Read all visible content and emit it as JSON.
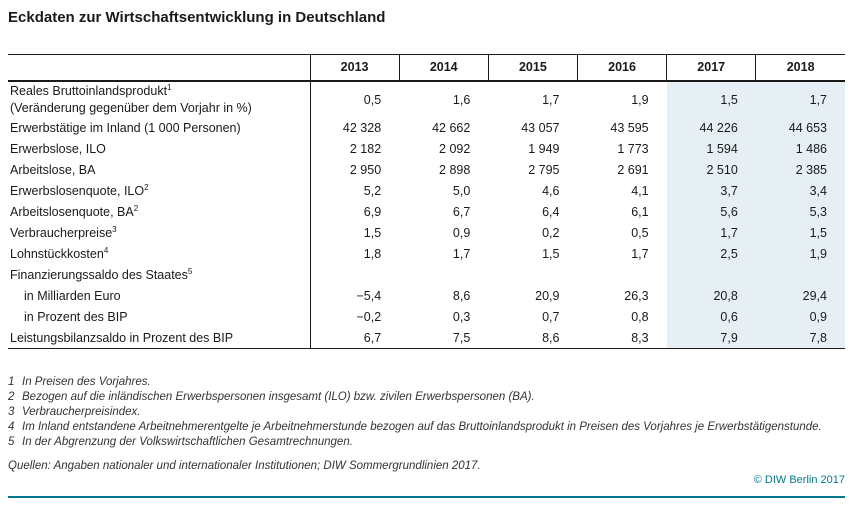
{
  "title": "Eckdaten zur Wirtschaftsentwicklung in Deutschland",
  "colors": {
    "accent_teal": "#00798e",
    "highlight_blue": "#e5eff4",
    "border_black": "#1a1a1a"
  },
  "table": {
    "col_headers": [
      "2013",
      "2014",
      "2015",
      "2016",
      "2017",
      "2018"
    ],
    "highlight_cols": [
      4,
      5
    ],
    "rows": [
      {
        "label": "Reales Bruttoinlandsprodukt",
        "sup": "1",
        "sublabel": "(Veränderung gegenüber dem Vorjahr in %)",
        "indent": false,
        "values": [
          "0,5",
          "1,6",
          "1,7",
          "1,9",
          "1,5",
          "1,7"
        ]
      },
      {
        "label": "Erwerbstätige im Inland (1 000 Personen)",
        "sup": "",
        "sublabel": "",
        "indent": false,
        "values": [
          "42 328",
          "42 662",
          "43 057",
          "43 595",
          "44 226",
          "44 653"
        ]
      },
      {
        "label": "Erwerbslose, ILO",
        "sup": "",
        "sublabel": "",
        "indent": false,
        "values": [
          "2 182",
          "2 092",
          "1 949",
          "1 773",
          "1 594",
          "1 486"
        ]
      },
      {
        "label": "Arbeitslose, BA",
        "sup": "",
        "sublabel": "",
        "indent": false,
        "values": [
          "2 950",
          "2 898",
          "2 795",
          "2 691",
          "2 510",
          "2 385"
        ]
      },
      {
        "label": "Erwerbslosenquote, ILO",
        "sup": "2",
        "sublabel": "",
        "indent": false,
        "values": [
          "5,2",
          "5,0",
          "4,6",
          "4,1",
          "3,7",
          "3,4"
        ]
      },
      {
        "label": "Arbeitslosenquote, BA",
        "sup": "2",
        "sublabel": "",
        "indent": false,
        "values": [
          "6,9",
          "6,7",
          "6,4",
          "6,1",
          "5,6",
          "5,3"
        ]
      },
      {
        "label": "Verbraucherpreise",
        "sup": "3",
        "sublabel": "",
        "indent": false,
        "values": [
          "1,5",
          "0,9",
          "0,2",
          "0,5",
          "1,7",
          "1,5"
        ]
      },
      {
        "label": "Lohnstückkosten",
        "sup": "4",
        "sublabel": "",
        "indent": false,
        "values": [
          "1,8",
          "1,7",
          "1,5",
          "1,7",
          "2,5",
          "1,9"
        ]
      },
      {
        "label": "Finanzierungssaldo des Staates",
        "sup": "5",
        "sublabel": "",
        "indent": false,
        "values": [
          "",
          "",
          "",
          "",
          "",
          ""
        ]
      },
      {
        "label": "in Milliarden Euro",
        "sup": "",
        "sublabel": "",
        "indent": true,
        "values": [
          "−5,4",
          "8,6",
          "20,9",
          "26,3",
          "20,8",
          "29,4"
        ]
      },
      {
        "label": "in Prozent des BIP",
        "sup": "",
        "sublabel": "",
        "indent": true,
        "values": [
          "−0,2",
          "0,3",
          "0,7",
          "0,8",
          "0,6",
          "0,9"
        ]
      },
      {
        "label": "Leistungsbilanzsaldo in Prozent des BIP",
        "sup": "",
        "sublabel": "",
        "indent": false,
        "values": [
          "6,7",
          "7,5",
          "8,6",
          "8,3",
          "7,9",
          "7,8"
        ]
      }
    ]
  },
  "footnotes": [
    {
      "num": "1",
      "text": "In Preisen des Vorjahres."
    },
    {
      "num": "2",
      "text": "Bezogen auf die inländischen Erwerbspersonen insgesamt (ILO) bzw. zivilen Erwerbspersonen (BA)."
    },
    {
      "num": "3",
      "text": "Verbraucherpreisindex."
    },
    {
      "num": "4",
      "text": "Im Inland entstandene Arbeitnehmerentgelte je Arbeitnehmerstunde bezogen auf das Bruttoinlandsprodukt in Preisen des Vorjahres je Erwerbstätigenstunde."
    },
    {
      "num": "5",
      "text": "In der Abgrenzung der Volkswirtschaftlichen Gesamtrechnungen."
    }
  ],
  "sources": "Quellen: Angaben nationaler und internationaler Institutionen; DIW Sommergrundlinien 2017.",
  "copyright": "© DIW Berlin 2017"
}
